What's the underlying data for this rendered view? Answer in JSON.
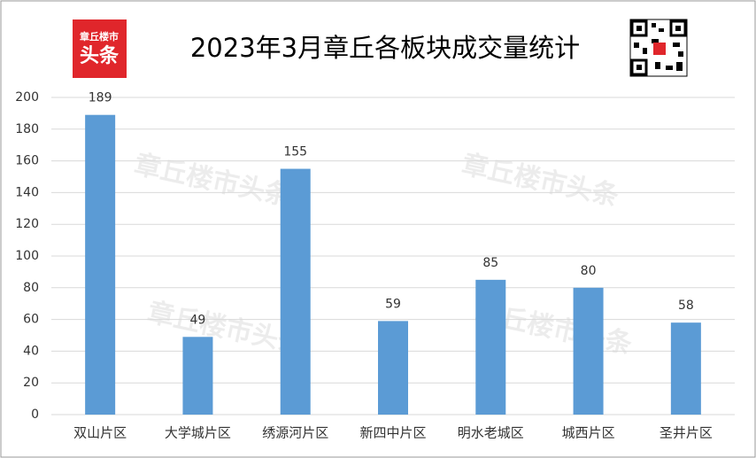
{
  "chart_data": {
    "type": "bar",
    "title": "2023年3月章丘各板块成交量统计",
    "logo": [
      "章丘楼市",
      "头条"
    ],
    "watermark": "章丘楼市头条",
    "categories": [
      "双山片区",
      "大学城片区",
      "绣源河片区",
      "新四中片区",
      "明水老城区",
      "城西片区",
      "圣井片区"
    ],
    "values": [
      189,
      49,
      155,
      59,
      85,
      80,
      58
    ],
    "color": "#5b9bd5",
    "ylim": [
      0,
      200
    ],
    "yticks": [
      0,
      20,
      40,
      60,
      80,
      100,
      120,
      140,
      160,
      180,
      200
    ],
    "grid": true
  }
}
